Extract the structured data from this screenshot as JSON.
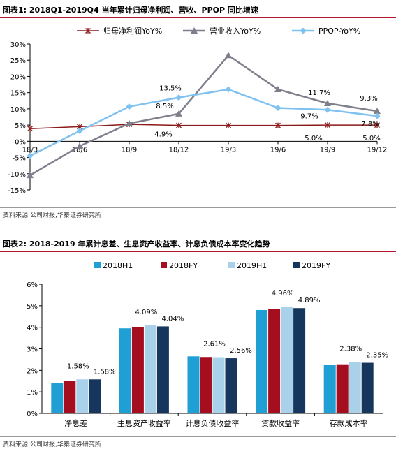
{
  "figure1": {
    "title": "图表1:   2018Q1-2019Q4 当年累计归母净利润、营收、PPOP 同比增速",
    "source": "资料来源:公司财报,华泰证券研究所"
  },
  "figure2": {
    "title": "图表2:   2018-2019 年累计息差、生息资产收益率、计息负债成本率变化趋势",
    "source": "资料来源:公司财报,华泰证券研究所"
  },
  "chart_data": [
    {
      "type": "line",
      "categories": [
        "18/3",
        "18/6",
        "18/9",
        "18/12",
        "19/3",
        "19/6",
        "19/9",
        "19/12"
      ],
      "series": [
        {
          "name": "归母净利润YoY%",
          "color": "#8b1a1a",
          "marker": "star",
          "values": [
            3.9,
            4.5,
            5.2,
            4.9,
            4.9,
            4.9,
            5.0,
            5.0
          ]
        },
        {
          "name": "营业收入YoY%",
          "color": "#7f7f8c",
          "marker": "triangle",
          "values": [
            -10.5,
            -1.5,
            5.5,
            8.5,
            26.5,
            16.0,
            11.7,
            9.3
          ]
        },
        {
          "name": "PPOP-YoY%",
          "color": "#7fc1f0",
          "marker": "diamond",
          "values": [
            -4.5,
            3.2,
            10.7,
            13.5,
            16.0,
            10.3,
            9.7,
            7.8
          ]
        }
      ],
      "annotations": [
        "4.9%",
        "8.5%",
        "13.5%",
        "11.7%",
        "9.3%",
        "9.7%",
        "7.8%",
        "5.0%",
        "5.0%"
      ],
      "ylim": [
        -15,
        30
      ],
      "yticks": [
        "-15%",
        "-10%",
        "-5%",
        "0%",
        "5%",
        "10%",
        "15%",
        "20%",
        "25%",
        "30%"
      ],
      "legend": "top",
      "grid": false
    },
    {
      "type": "bar",
      "categories": [
        "净息差",
        "生息资产收益率",
        "计息负债收益率",
        "贷款收益率",
        "存款成本率"
      ],
      "series": [
        {
          "name": "2018H1",
          "color": "#1f9fd4",
          "values": [
            1.42,
            3.95,
            2.65,
            4.8,
            2.25
          ]
        },
        {
          "name": "2018FY",
          "color": "#a50e1e",
          "values": [
            1.5,
            4.02,
            2.62,
            4.85,
            2.28
          ]
        },
        {
          "name": "2019H1",
          "color": "#a9d2ea",
          "values": [
            1.58,
            4.09,
            2.61,
            4.96,
            2.38
          ]
        },
        {
          "name": "2019FY",
          "color": "#17365d",
          "values": [
            1.58,
            4.04,
            2.56,
            4.89,
            2.35
          ]
        }
      ],
      "data_labels": [
        [
          "1.58%",
          "1.58%"
        ],
        [
          "4.09%",
          "4.04%"
        ],
        [
          "2.61%",
          "2.56%"
        ],
        [
          "4.96%",
          "4.89%"
        ],
        [
          "2.38%",
          "2.35%"
        ]
      ],
      "ylim": [
        0,
        6
      ],
      "yticks": [
        "0%",
        "1%",
        "2%",
        "3%",
        "4%",
        "5%",
        "6%"
      ],
      "legend": "top",
      "grid": false
    }
  ]
}
